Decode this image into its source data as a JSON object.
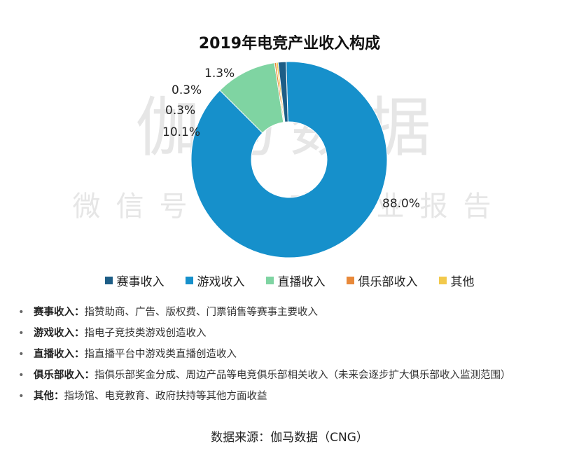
{
  "chart_data": {
    "type": "pie",
    "title": "2019年电竞产业收入构成",
    "categories": [
      "赛事收入",
      "游戏收入",
      "直播收入",
      "俱乐部收入",
      "其他"
    ],
    "values": [
      1.3,
      88.0,
      10.1,
      0.3,
      0.3
    ],
    "data_labels": [
      "1.3%",
      "88.0%",
      "10.1%",
      "0.3%",
      "0.3%"
    ],
    "colors": [
      "#1d5d86",
      "#1690cb",
      "#7fd4a2",
      "#e8893a",
      "#f2c94c"
    ],
    "donut": true,
    "legend": "bottom"
  },
  "watermark": {
    "line1": "伽马数据",
    "line2": "微信号：游戏产业报告"
  },
  "notes": [
    {
      "term": "赛事收入",
      "sep": "：",
      "desc": "指赞助商、广告、版权费、门票销售等赛事主要收入"
    },
    {
      "term": "游戏收入",
      "sep": "：",
      "desc": "指电子竞技类游戏创造收入"
    },
    {
      "term": "直播收入",
      "sep": "：",
      "desc": "指直播平台中游戏类直播创造收入"
    },
    {
      "term": "俱乐部收入",
      "sep": "：",
      "desc": "指俱乐部奖金分成、周边产品等电竞俱乐部相关收入（未来会逐步扩大俱乐部收入监测范围）"
    },
    {
      "term": "其他",
      "sep": "：",
      "desc": "指场馆、电竞教育、政府扶持等其他方面收益"
    }
  ],
  "bullet": "•",
  "source": "数据来源：伽马数据（CNG）"
}
